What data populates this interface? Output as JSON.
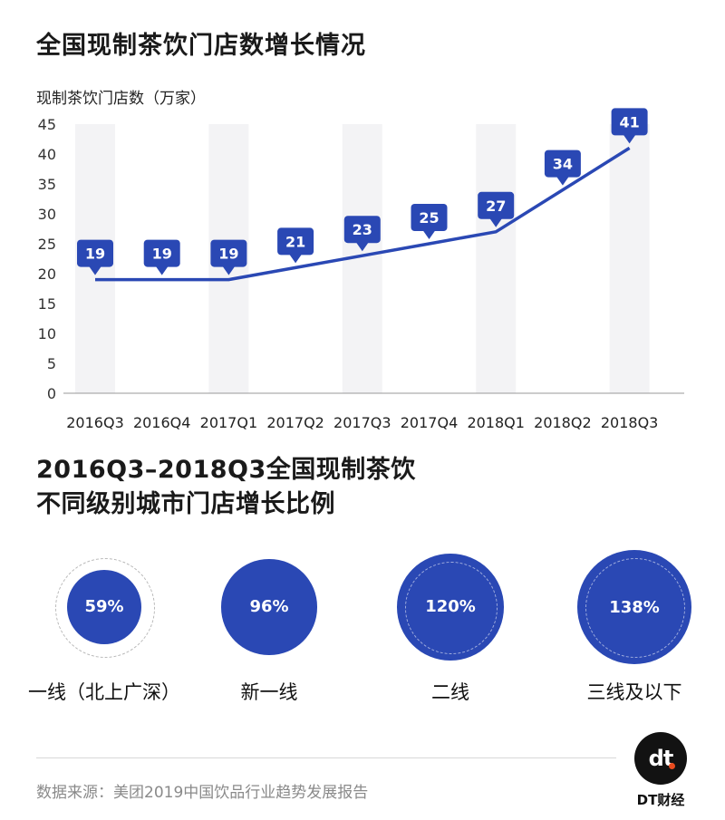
{
  "chart1": {
    "title": "全国现制茶饮门店数增长情况",
    "ylabel": "现制茶饮门店数（万家）"
  },
  "chart_data": [
    {
      "type": "line",
      "title": "全国现制茶饮门店数增长情况",
      "ylabel": "现制茶饮门店数（万家）",
      "xlabel": "",
      "categories": [
        "2016Q3",
        "2016Q4",
        "2017Q1",
        "2017Q2",
        "2017Q3",
        "2017Q4",
        "2018Q1",
        "2018Q2",
        "2018Q3"
      ],
      "values": [
        19,
        19,
        19,
        21,
        23,
        25,
        27,
        34,
        41
      ],
      "ylim": [
        0,
        45
      ],
      "yticks": [
        0,
        5,
        10,
        15,
        20,
        25,
        30,
        35,
        40,
        45
      ],
      "color": "#2a48b4"
    },
    {
      "type": "bubble",
      "title": "2016Q3-2018Q3全国现制茶饮不同级别城市门店增长比例",
      "categories": [
        "一线（北上广深）",
        "新一线",
        "二线",
        "三线及以下"
      ],
      "values": [
        59,
        96,
        120,
        138
      ],
      "value_labels": [
        "59%",
        "96%",
        "120%",
        "138%"
      ],
      "color": "#2a48b4"
    }
  ],
  "chart2": {
    "title_line1": "2016Q3–2018Q3全国现制茶饮",
    "title_line2": "不同级别城市门店增长比例"
  },
  "footer": {
    "source": "数据来源：美团2019中国饮品行业趋势发展报告",
    "logo_glyph": "dt",
    "logo_text": "DT财经"
  },
  "colors": {
    "accent": "#2a48b4",
    "column_band": "#f3f3f5"
  }
}
